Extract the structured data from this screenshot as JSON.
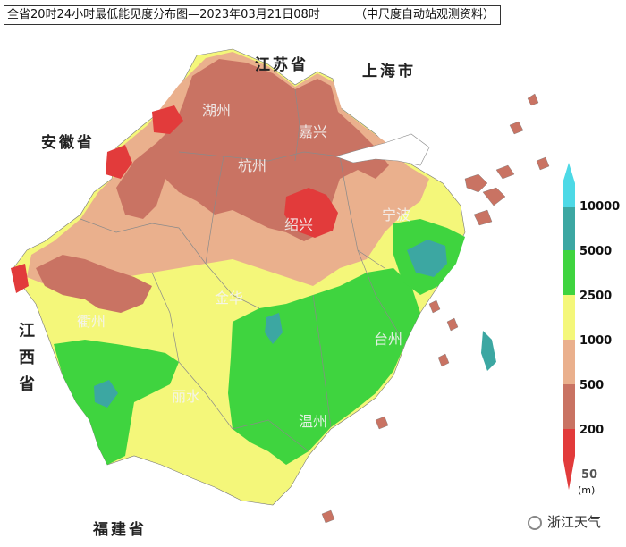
{
  "title": {
    "main": "全省20时24小时最低能见度分布图—2023年03月21日08时",
    "source": "（中尺度自动站观测资料）"
  },
  "regions": {
    "jiangsu": "江苏省",
    "shanghai": "上海市",
    "anhui": "安徽省",
    "jiangxi": "江西省",
    "fujian": "福建省"
  },
  "cities": [
    "湖州",
    "嘉兴",
    "杭州",
    "绍兴",
    "宁波",
    "衢州",
    "金华",
    "台州",
    "丽水",
    "温州"
  ],
  "legend": {
    "unit": "(m)",
    "levels": [
      {
        "value": "10000",
        "color": "#4dd9e6"
      },
      {
        "value": "5000",
        "color": "#3ca7a2"
      },
      {
        "value": "2500",
        "color": "#3fd43f"
      },
      {
        "value": "1000",
        "color": "#f4f77a"
      },
      {
        "value": "500",
        "color": "#eab08d"
      },
      {
        "value": "200",
        "color": "#c97363"
      },
      {
        "value": "50",
        "color": "#e23b3b"
      }
    ]
  },
  "watermark": "浙江天气"
}
